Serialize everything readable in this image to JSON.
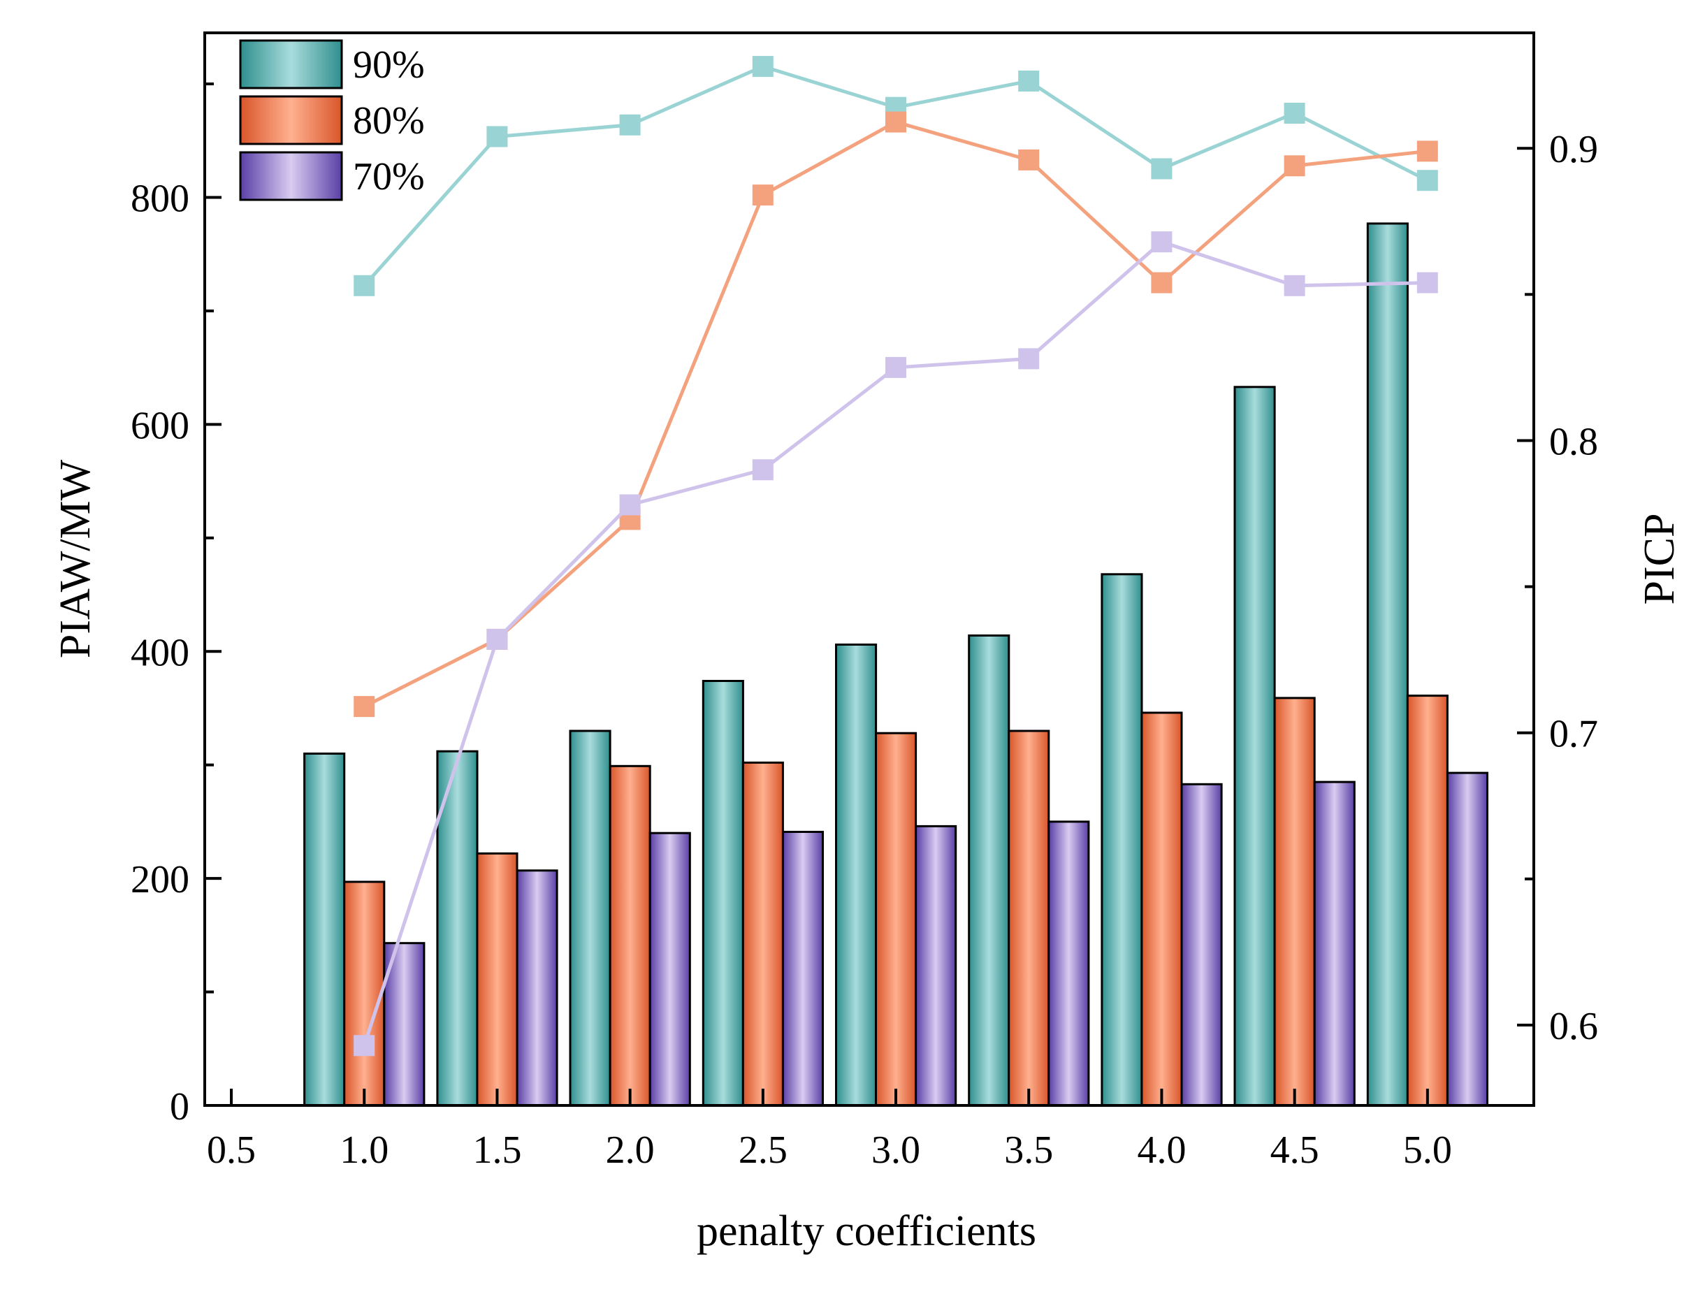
{
  "chart_data": {
    "type": "bar",
    "xlabel": "penalty coefficients",
    "ylabel_left": "PIAW/MW",
    "ylabel_right": "PICP",
    "x_tick_labels": [
      "0.5",
      "1.0",
      "1.5",
      "2.0",
      "2.5",
      "3.0",
      "3.5",
      "4.0",
      "4.5",
      "5.0"
    ],
    "x_ticks": [
      0.5,
      1.0,
      1.5,
      2.0,
      2.5,
      3.0,
      3.5,
      4.0,
      4.5,
      5.0
    ],
    "xlim": [
      0.4,
      5.4
    ],
    "categories": [
      1.0,
      1.5,
      2.0,
      2.5,
      3.0,
      3.5,
      4.0,
      4.5,
      5.0
    ],
    "ylim_left": [
      0,
      945
    ],
    "y_left_ticks": [
      0,
      200,
      400,
      600,
      800
    ],
    "y_left_tick_labels": [
      "0",
      "200",
      "400",
      "600",
      "800"
    ],
    "ylim_right": [
      0.5725,
      0.9395
    ],
    "y_right_ticks": [
      0.6,
      0.7,
      0.8,
      0.9
    ],
    "y_right_tick_labels": [
      "0.6",
      "0.7",
      "0.8",
      "0.9"
    ],
    "bar_series": [
      {
        "name": "90%",
        "values": [
          310,
          312,
          330,
          374,
          406,
          414,
          468,
          633,
          777
        ]
      },
      {
        "name": "80%",
        "values": [
          197,
          222,
          299,
          302,
          328,
          330,
          346,
          359,
          361
        ]
      },
      {
        "name": "70%",
        "values": [
          143,
          207,
          240,
          241,
          246,
          250,
          283,
          285,
          293
        ]
      }
    ],
    "line_series": [
      {
        "name": "90%",
        "axis": "right",
        "values": [
          0.853,
          0.904,
          0.908,
          0.928,
          0.914,
          0.923,
          0.893,
          0.912,
          0.889
        ]
      },
      {
        "name": "80%",
        "axis": "right",
        "values": [
          0.709,
          0.732,
          0.773,
          0.884,
          0.909,
          0.896,
          0.854,
          0.894,
          0.899
        ]
      },
      {
        "name": "70%",
        "axis": "right",
        "values": [
          0.593,
          0.732,
          0.778,
          0.79,
          0.825,
          0.828,
          0.868,
          0.853,
          0.854
        ]
      }
    ],
    "legend": {
      "position": "top-left",
      "entries": [
        "90%",
        "80%",
        "70%"
      ]
    },
    "colors": {
      "90%": {
        "dark": "#2f8f8e",
        "light": "#a9dcdc",
        "line": "#99d3d3"
      },
      "80%": {
        "dark": "#d9562a",
        "light": "#ffb08f",
        "line": "#f4a27e"
      },
      "70%": {
        "dark": "#5a3fa6",
        "light": "#d8ccf1",
        "line": "#cfc3ec"
      }
    }
  }
}
